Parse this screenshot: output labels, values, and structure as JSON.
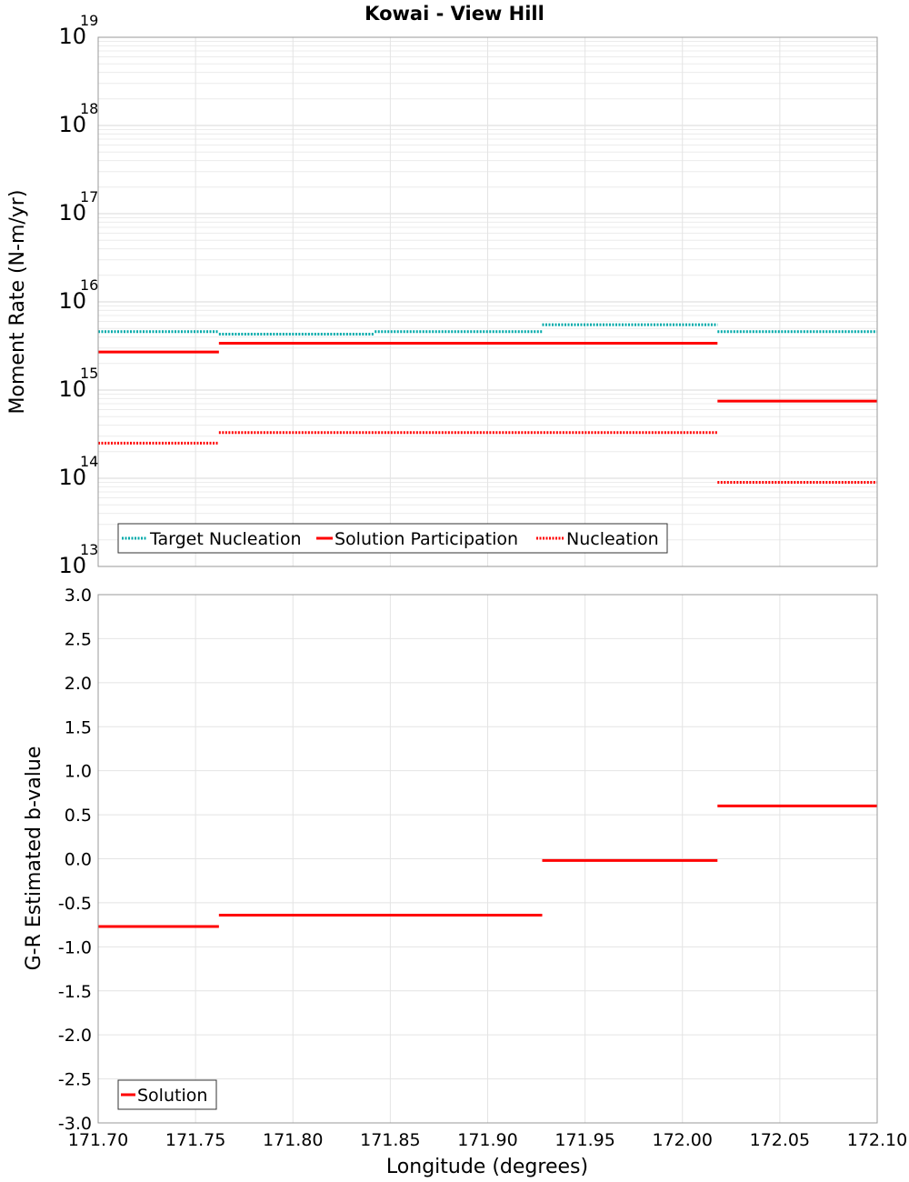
{
  "chart_data": [
    {
      "type": "line",
      "title": "Kowai - View Hill",
      "ylabel": "Moment Rate (N-m/yr)",
      "xlabel": "Longitude (degrees)",
      "yscale": "log",
      "ylim_exponents": [
        13,
        19
      ],
      "ytick_base": "10",
      "ytick_exponents": [
        "13",
        "14",
        "15",
        "16",
        "17",
        "18",
        "19"
      ],
      "xlim": [
        171.7,
        172.1
      ],
      "xtick_labels": [
        "171.70",
        "171.75",
        "171.80",
        "171.85",
        "171.90",
        "171.95",
        "172.00",
        "172.05",
        "172.10"
      ],
      "grid": true,
      "legend_position": "bottom-left",
      "series": [
        {
          "name": "Target Nucleation",
          "color": "#00aaaa",
          "style": "dotted",
          "segments": [
            {
              "x": [
                171.7,
                171.762
              ],
              "y": 4600000000000000.0
            },
            {
              "x": [
                171.762,
                171.842
              ],
              "y": 4300000000000000.0
            },
            {
              "x": [
                171.842,
                171.928
              ],
              "y": 4600000000000000.0
            },
            {
              "x": [
                171.928,
                172.018
              ],
              "y": 5500000000000000.0
            },
            {
              "x": [
                172.018,
                172.1
              ],
              "y": 4600000000000000.0
            }
          ]
        },
        {
          "name": "Solution Participation",
          "color": "#ff0000",
          "style": "solid",
          "segments": [
            {
              "x": [
                171.7,
                171.762
              ],
              "y": 2700000000000000.0
            },
            {
              "x": [
                171.762,
                172.018
              ],
              "y": 3400000000000000.0
            },
            {
              "x": [
                172.018,
                172.1
              ],
              "y": 750000000000000.0
            }
          ]
        },
        {
          "name": "Nucleation",
          "color": "#ff0000",
          "style": "dotted",
          "segments": [
            {
              "x": [
                171.7,
                171.762
              ],
              "y": 250000000000000.0
            },
            {
              "x": [
                171.762,
                172.018
              ],
              "y": 330000000000000.0
            },
            {
              "x": [
                172.018,
                172.1
              ],
              "y": 90000000000000.0
            }
          ]
        }
      ]
    },
    {
      "type": "line",
      "ylabel": "G-R Estimated b-value",
      "xlabel": "Longitude (degrees)",
      "ylim": [
        -3.0,
        3.0
      ],
      "ytick_labels": [
        "3.0",
        "2.5",
        "2.0",
        "1.5",
        "1.0",
        "0.5",
        "0.0",
        "-0.5",
        "-1.0",
        "-1.5",
        "-2.0",
        "-2.5",
        "-3.0"
      ],
      "xlim": [
        171.7,
        172.1
      ],
      "xtick_labels": [
        "171.70",
        "171.75",
        "171.80",
        "171.85",
        "171.90",
        "171.95",
        "172.00",
        "172.05",
        "172.10"
      ],
      "grid": true,
      "legend_position": "bottom-left",
      "series": [
        {
          "name": "Solution",
          "color": "#ff0000",
          "style": "solid",
          "segments": [
            {
              "x": [
                171.7,
                171.762
              ],
              "y": -0.77
            },
            {
              "x": [
                171.762,
                171.928
              ],
              "y": -0.64
            },
            {
              "x": [
                171.928,
                172.018
              ],
              "y": -0.02
            },
            {
              "x": [
                172.018,
                172.1
              ],
              "y": 0.6
            }
          ]
        }
      ]
    }
  ]
}
